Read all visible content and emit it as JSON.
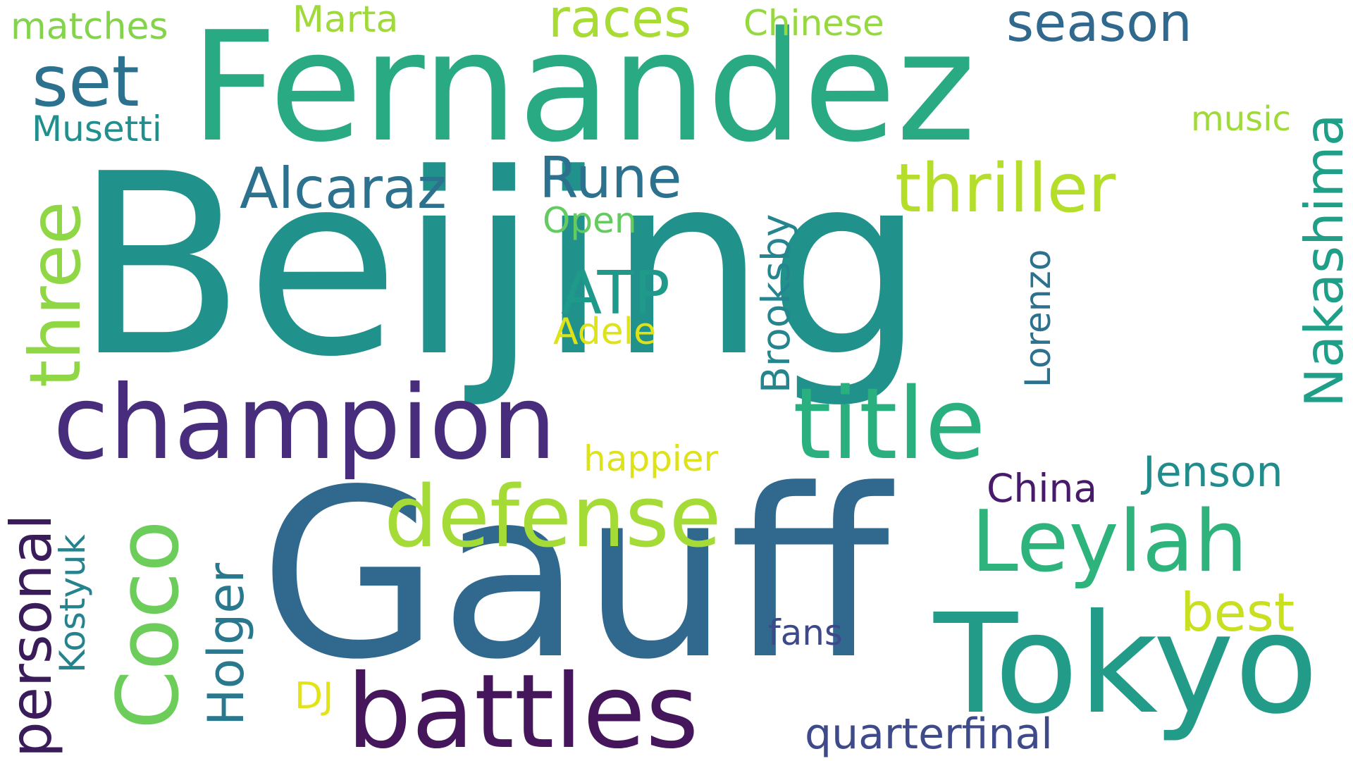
{
  "background_color": "#ffffff",
  "words": [
    {
      "text": "Beijing",
      "color": "#21918c"
    },
    {
      "text": "Gauff",
      "color": "#31688e"
    },
    {
      "text": "Fernandez",
      "color": "#2aaa82"
    },
    {
      "text": "Tokyo",
      "color": "#239b89"
    },
    {
      "text": "champion",
      "color": "#472d7b"
    },
    {
      "text": "battles",
      "color": "#46165c"
    },
    {
      "text": "title",
      "color": "#2ab07f"
    },
    {
      "text": "Leylah",
      "color": "#2eb37c"
    },
    {
      "text": "defense",
      "color": "#a5db36"
    },
    {
      "text": "Coco",
      "color": "#6ccd5a"
    },
    {
      "text": "three",
      "color": "#8fd744"
    },
    {
      "text": "thriller",
      "color": "#b5de2b"
    },
    {
      "text": "Nakashima",
      "color": "#1f9f88"
    },
    {
      "text": "personal",
      "color": "#3b1c5a"
    },
    {
      "text": "set",
      "color": "#2c728e"
    },
    {
      "text": "Alcaraz",
      "color": "#2c728e"
    },
    {
      "text": "Rune",
      "color": "#2c728e"
    },
    {
      "text": "season",
      "color": "#31688e"
    },
    {
      "text": "races",
      "color": "#a8db34"
    },
    {
      "text": "ATP",
      "color": "#1f9a8a"
    },
    {
      "text": "Holger",
      "color": "#2a788e"
    },
    {
      "text": "best",
      "color": "#c8e020"
    },
    {
      "text": "Brooksby",
      "color": "#25858e"
    },
    {
      "text": "Lorenzo",
      "color": "#2c728e"
    },
    {
      "text": "Kostyuk",
      "color": "#25838e"
    },
    {
      "text": "Jenson",
      "color": "#228c8d"
    },
    {
      "text": "quarterfinal",
      "color": "#3e4a89"
    },
    {
      "text": "Chinese",
      "color": "#95d840"
    },
    {
      "text": "matches",
      "color": "#84d44b"
    },
    {
      "text": "Marta",
      "color": "#9fda3a"
    },
    {
      "text": "Musetti",
      "color": "#218f8d"
    },
    {
      "text": "music",
      "color": "#a0da39"
    },
    {
      "text": "Open",
      "color": "#63cb5f"
    },
    {
      "text": "Adele",
      "color": "#dde318"
    },
    {
      "text": "happier",
      "color": "#dde318"
    },
    {
      "text": "China",
      "color": "#481a6c"
    },
    {
      "text": "fans",
      "color": "#3e4989"
    },
    {
      "text": "DJ",
      "color": "#e2e418"
    }
  ]
}
